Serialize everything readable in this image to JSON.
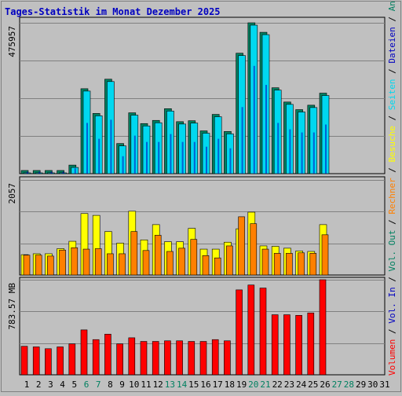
{
  "chart_data": {
    "type": "bar",
    "title": "Tages-Statistik im Monat Dezember 2025",
    "categories": [
      "1",
      "2",
      "3",
      "4",
      "5",
      "6",
      "7",
      "8",
      "9",
      "10",
      "11",
      "12",
      "13",
      "14",
      "15",
      "16",
      "17",
      "18",
      "19",
      "20",
      "21",
      "22",
      "23",
      "24",
      "25",
      "26",
      "27",
      "28",
      "29",
      "30",
      "31"
    ],
    "weekend_days": [
      "6",
      "7",
      "13",
      "14",
      "20",
      "21",
      "27",
      "28"
    ],
    "panels": [
      {
        "id": "top",
        "ylabel": "475957",
        "ymax": 475957,
        "series": [
          {
            "name": "Anfragen",
            "color": "#008060",
            "values": [
              10000,
              10000,
              10000,
              10000,
              27000,
              268000,
              190000,
              298000,
              95000,
              192000,
              158000,
              168000,
              205000,
              164000,
              167000,
              135000,
              187000,
              133000,
              380000,
              475957,
              446000,
              271000,
              226000,
              202000,
              216000,
              254000,
              0,
              0,
              0,
              0,
              0
            ]
          },
          {
            "name": "Dateien",
            "color": "#0000c0",
            "values": [
              6000,
              6000,
              6000,
              6000,
              17000,
              160000,
              110000,
              170000,
              55000,
              120000,
              100000,
              100000,
              125000,
              100000,
              100000,
              85000,
              110000,
              80000,
              210000,
              340000,
              280000,
              160000,
              140000,
              130000,
              130000,
              155000,
              0,
              0,
              0,
              0,
              0
            ]
          },
          {
            "name": "Seiten",
            "color": "#00d8f0",
            "values": [
              10000,
              10000,
              10000,
              10000,
              27000,
              268000,
              190000,
              298000,
              95000,
              192000,
              158000,
              168000,
              205000,
              164000,
              167000,
              135000,
              187000,
              133000,
              380000,
              475957,
              446000,
              271000,
              226000,
              202000,
              216000,
              254000,
              0,
              0,
              0,
              0,
              0
            ]
          }
        ]
      },
      {
        "id": "middle",
        "ylabel": "2057",
        "ymax": 2057,
        "series": [
          {
            "name": "Besuche",
            "color": "#ffff00",
            "values": [
              440,
              460,
              460,
              570,
              730,
              1330,
              1290,
              940,
              690,
              1380,
              760,
              1090,
              720,
              720,
              1010,
              560,
              560,
              710,
              1000,
              1360,
              630,
              620,
              580,
              520,
              510,
              1090,
              0,
              0,
              0,
              0,
              0
            ]
          },
          {
            "name": "Rechner",
            "color": "#ff8000",
            "values": [
              430,
              430,
              410,
              540,
              590,
              560,
              570,
              460,
              460,
              940,
              530,
              860,
              510,
              580,
              770,
              420,
              370,
              630,
              1260,
              1110,
              560,
              470,
              470,
              480,
              470,
              870,
              0,
              0,
              0,
              0,
              0
            ]
          }
        ]
      },
      {
        "id": "bottom",
        "ylabel": "783.57 MB",
        "ymax": 783.57,
        "series": [
          {
            "name": "Volumen",
            "color": "#ff0000",
            "values": [
              235,
              230,
              215,
              230,
              255,
              370,
              290,
              335,
              255,
              305,
              275,
              275,
              280,
              280,
              275,
              275,
              290,
              280,
              700,
              740,
              715,
              495,
              495,
              490,
              510,
              783.57,
              0,
              0,
              0,
              0,
              0
            ]
          }
        ]
      }
    ],
    "right_legend": [
      {
        "text": "Volumen",
        "color": "#ff0000"
      },
      {
        "text": " / ",
        "color": "#000000"
      },
      {
        "text": "Vol. In",
        "color": "#0000c0"
      },
      {
        "text": " / ",
        "color": "#000000"
      },
      {
        "text": "Vol. Out",
        "color": "#008060"
      },
      {
        "text": " / ",
        "color": "#000000"
      },
      {
        "text": "Rechner",
        "color": "#ff8000"
      },
      {
        "text": " / ",
        "color": "#000000"
      },
      {
        "text": "Besuche",
        "color": "#ffff00"
      },
      {
        "text": " / ",
        "color": "#000000"
      },
      {
        "text": "Seiten",
        "color": "#00d8f0"
      },
      {
        "text": " / ",
        "color": "#000000"
      },
      {
        "text": "Dateien",
        "color": "#0000c0"
      },
      {
        "text": " / ",
        "color": "#000000"
      },
      {
        "text": "Anfragen",
        "color": "#008060"
      }
    ],
    "grid": true,
    "colors": {
      "background": "#c0c0c0",
      "title": "#0000c0",
      "weekday_label": "#000000",
      "weekend_label": "#008060",
      "gridline": "#808080"
    }
  }
}
